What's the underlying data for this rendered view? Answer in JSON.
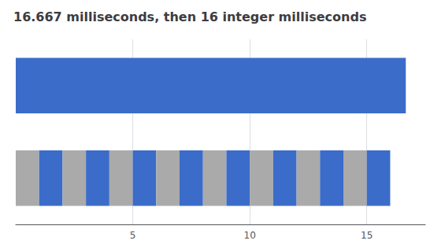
{
  "chart_data": {
    "type": "bar",
    "orientation": "horizontal",
    "stacked": true,
    "title": "16.667 milliseconds, then 16 integer milliseconds",
    "categories": [
      null,
      null
    ],
    "series": [
      {
        "color": "#3b6cc9",
        "values": [
          null,
          16.667
        ]
      },
      {
        "color": "#aaaaaa",
        "values": [
          1,
          null
        ]
      },
      {
        "color": "#3b6cc9",
        "values": [
          1,
          null
        ]
      },
      {
        "color": "#aaaaaa",
        "values": [
          1,
          null
        ]
      },
      {
        "color": "#3b6cc9",
        "values": [
          1,
          null
        ]
      },
      {
        "color": "#aaaaaa",
        "values": [
          1,
          null
        ]
      },
      {
        "color": "#3b6cc9",
        "values": [
          1,
          null
        ]
      },
      {
        "color": "#aaaaaa",
        "values": [
          1,
          null
        ]
      },
      {
        "color": "#3b6cc9",
        "values": [
          1,
          null
        ]
      },
      {
        "color": "#aaaaaa",
        "values": [
          1,
          null
        ]
      },
      {
        "color": "#3b6cc9",
        "values": [
          1,
          null
        ]
      },
      {
        "color": "#aaaaaa",
        "values": [
          1,
          null
        ]
      },
      {
        "color": "#3b6cc9",
        "values": [
          1,
          null
        ]
      },
      {
        "color": "#aaaaaa",
        "values": [
          1,
          null
        ]
      },
      {
        "color": "#3b6cc9",
        "values": [
          1,
          null
        ]
      },
      {
        "color": "#aaaaaa",
        "values": [
          1,
          null
        ]
      },
      {
        "color": "#3b6cc9",
        "values": [
          1,
          null
        ]
      }
    ],
    "xlim": [
      0,
      17.5
    ],
    "xticks": [
      5,
      10,
      15
    ],
    "grid": true,
    "tick_labels": "x"
  }
}
